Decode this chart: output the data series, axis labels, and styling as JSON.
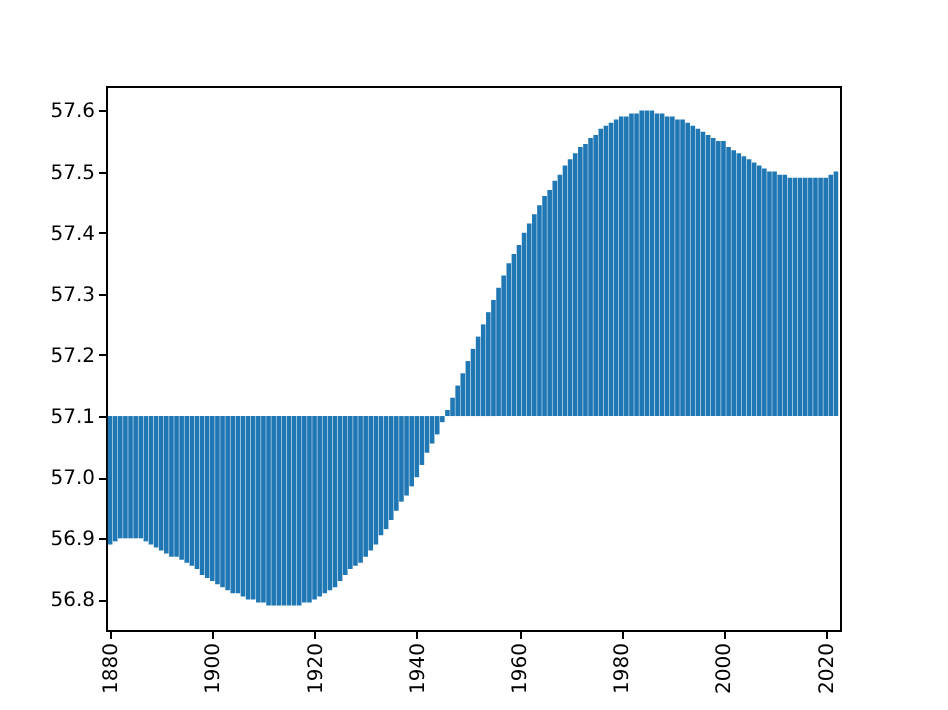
{
  "chart_data": {
    "type": "bar",
    "x": [
      1880,
      1881,
      1882,
      1883,
      1884,
      1885,
      1886,
      1887,
      1888,
      1889,
      1890,
      1891,
      1892,
      1893,
      1894,
      1895,
      1896,
      1897,
      1898,
      1899,
      1900,
      1901,
      1902,
      1903,
      1904,
      1905,
      1906,
      1907,
      1908,
      1909,
      1910,
      1911,
      1912,
      1913,
      1914,
      1915,
      1916,
      1917,
      1918,
      1919,
      1920,
      1921,
      1922,
      1923,
      1924,
      1925,
      1926,
      1927,
      1928,
      1929,
      1930,
      1931,
      1932,
      1933,
      1934,
      1935,
      1936,
      1937,
      1938,
      1939,
      1940,
      1941,
      1942,
      1943,
      1944,
      1945,
      1946,
      1947,
      1948,
      1949,
      1950,
      1951,
      1952,
      1953,
      1954,
      1955,
      1956,
      1957,
      1958,
      1959,
      1960,
      1961,
      1962,
      1963,
      1964,
      1965,
      1966,
      1967,
      1968,
      1969,
      1970,
      1971,
      1972,
      1973,
      1974,
      1975,
      1976,
      1977,
      1978,
      1979,
      1980,
      1981,
      1982,
      1983,
      1984,
      1985,
      1986,
      1987,
      1988,
      1989,
      1990,
      1991,
      1992,
      1993,
      1994,
      1995,
      1996,
      1997,
      1998,
      1999,
      2000,
      2001,
      2002,
      2003,
      2004,
      2005,
      2006,
      2007,
      2008,
      2009,
      2010,
      2011,
      2012,
      2013,
      2014,
      2015,
      2016,
      2017,
      2018,
      2019,
      2020,
      2021,
      2022
    ],
    "values": [
      -0.21,
      -0.205,
      -0.2,
      -0.2,
      -0.2,
      -0.2,
      -0.2,
      -0.205,
      -0.21,
      -0.215,
      -0.22,
      -0.225,
      -0.23,
      -0.23,
      -0.235,
      -0.24,
      -0.245,
      -0.25,
      -0.26,
      -0.265,
      -0.27,
      -0.275,
      -0.28,
      -0.285,
      -0.29,
      -0.29,
      -0.295,
      -0.3,
      -0.3,
      -0.305,
      -0.305,
      -0.31,
      -0.31,
      -0.31,
      -0.31,
      -0.31,
      -0.31,
      -0.31,
      -0.305,
      -0.305,
      -0.3,
      -0.295,
      -0.29,
      -0.285,
      -0.28,
      -0.27,
      -0.26,
      -0.25,
      -0.245,
      -0.24,
      -0.23,
      -0.22,
      -0.21,
      -0.195,
      -0.185,
      -0.17,
      -0.155,
      -0.14,
      -0.13,
      -0.115,
      -0.1,
      -0.08,
      -0.06,
      -0.045,
      -0.03,
      -0.01,
      0.01,
      0.03,
      0.05,
      0.07,
      0.09,
      0.11,
      0.13,
      0.15,
      0.17,
      0.19,
      0.21,
      0.23,
      0.25,
      0.265,
      0.28,
      0.3,
      0.315,
      0.33,
      0.345,
      0.36,
      0.37,
      0.385,
      0.395,
      0.41,
      0.42,
      0.43,
      0.44,
      0.445,
      0.455,
      0.46,
      0.47,
      0.475,
      0.48,
      0.485,
      0.49,
      0.49,
      0.495,
      0.495,
      0.5,
      0.5,
      0.5,
      0.495,
      0.495,
      0.49,
      0.49,
      0.485,
      0.485,
      0.48,
      0.475,
      0.47,
      0.465,
      0.46,
      0.455,
      0.45,
      0.45,
      0.44,
      0.435,
      0.43,
      0.425,
      0.42,
      0.415,
      0.41,
      0.405,
      0.4,
      0.4,
      0.395,
      0.395,
      0.39,
      0.39,
      0.39,
      0.39,
      0.39,
      0.39,
      0.39,
      0.39,
      0.395,
      0.4
    ],
    "base": [
      57.1,
      57.1,
      57.1,
      57.1,
      57.1,
      57.1,
      57.1,
      57.1,
      57.1,
      57.1,
      57.1,
      57.1,
      57.1,
      57.1,
      57.1,
      57.1,
      57.1,
      57.1,
      57.1,
      57.1,
      57.1,
      57.1,
      57.1,
      57.1,
      57.1,
      57.1,
      57.1,
      57.1,
      57.1,
      57.1,
      57.1,
      57.1,
      57.1,
      57.1,
      57.1,
      57.1,
      57.1,
      57.1,
      57.1,
      57.1,
      57.1,
      57.1,
      57.1,
      57.1,
      57.1,
      57.1,
      57.1,
      57.1,
      57.1,
      57.1,
      57.1,
      57.1,
      57.1,
      57.1,
      57.1,
      57.1,
      57.1,
      57.1,
      57.1,
      57.1,
      57.1,
      57.1,
      57.1,
      57.1,
      57.1,
      57.1,
      57.1,
      57.1,
      57.1,
      57.1,
      57.1,
      57.1,
      57.1,
      57.1,
      57.1,
      57.1,
      57.1,
      57.1,
      57.1,
      57.1,
      57.1,
      57.1,
      57.1,
      57.1,
      57.1,
      57.1,
      57.1,
      57.1,
      57.1,
      57.1,
      57.1,
      57.1,
      57.1,
      57.1,
      57.1,
      57.1,
      57.1,
      57.1,
      57.1,
      57.1,
      57.1,
      57.1,
      57.1,
      57.1,
      57.1,
      57.1,
      57.1,
      57.1,
      57.1,
      57.1,
      57.1,
      57.1,
      57.1,
      57.1,
      57.1,
      57.1,
      57.1,
      57.1,
      57.1,
      57.1,
      57.1,
      57.1,
      57.1,
      57.1,
      57.1,
      57.1,
      57.1,
      57.1,
      57.1,
      57.1,
      57.1,
      57.1,
      57.1,
      57.1,
      57.1,
      57.1,
      57.1,
      57.1,
      57.1,
      57.1,
      57.1,
      57.1,
      57.1
    ],
    "color": "#1f77b4",
    "xlim": [
      1879.2,
      2022.8
    ],
    "xticks": [
      1880,
      1900,
      1920,
      1940,
      1960,
      1980,
      2000,
      2020
    ],
    "ylim": [
      56.75,
      57.64
    ],
    "yticks": [
      56.8,
      56.9,
      {
        "value": 57,
        "label": "57.0"
      },
      57.1,
      57.2,
      57.3,
      57.4,
      57.5,
      57.6
    ],
    "grid": false
  }
}
